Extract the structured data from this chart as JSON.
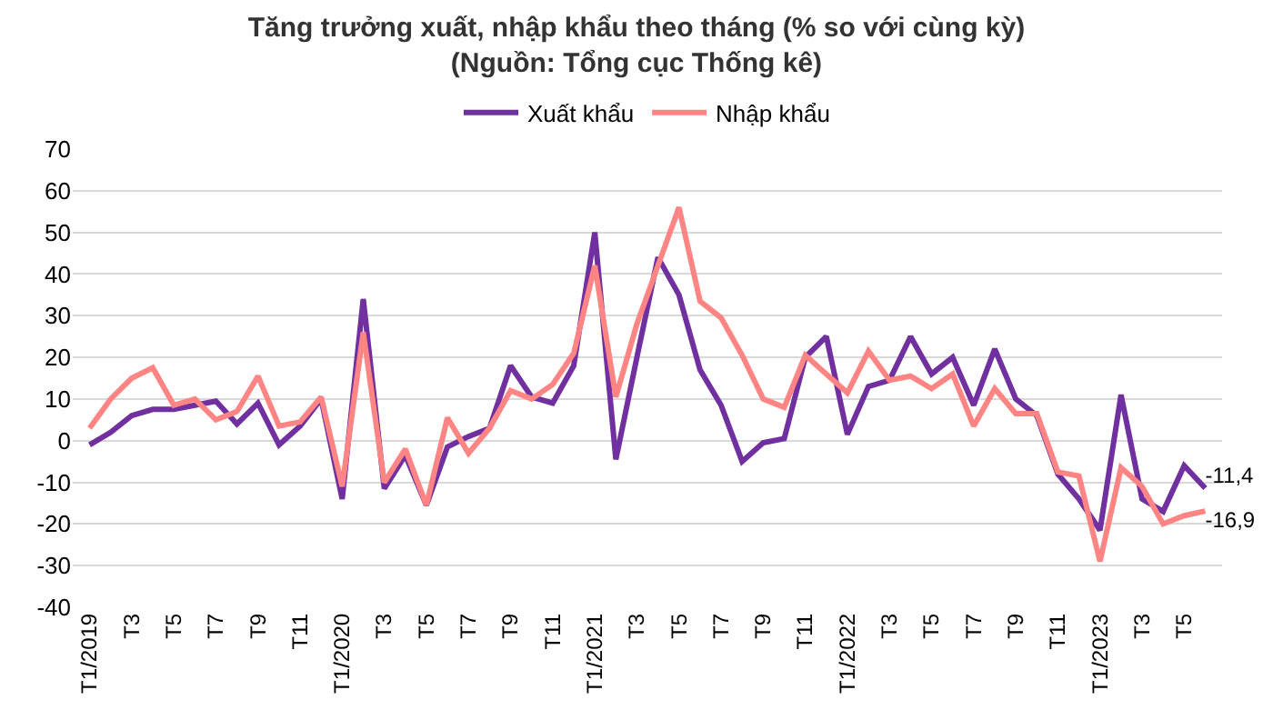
{
  "chart_data": {
    "type": "line",
    "title": "Tăng trưởng xuất, nhập khẩu theo tháng (% so với cùng kỳ)",
    "subtitle": "(Nguồn: Tổng cục Thống kê)",
    "categories": [
      "T1/2019",
      null,
      "T3",
      null,
      "T5",
      null,
      "T7",
      null,
      "T9",
      null,
      "T11",
      null,
      "T1/2020",
      null,
      "T3",
      null,
      "T5",
      null,
      "T7",
      null,
      "T9",
      null,
      "T11",
      null,
      "T1/2021",
      null,
      "T3",
      null,
      "T5",
      null,
      "T7",
      null,
      "T9",
      null,
      "T11",
      null,
      "T1/2022",
      null,
      "T3",
      null,
      "T5",
      null,
      "T7",
      null,
      "T9",
      null,
      "T11",
      null,
      "T1/2023",
      null,
      "T3",
      null,
      "T5",
      null
    ],
    "series": [
      {
        "name": "Xuất khẩu",
        "color": "#7030a0",
        "values": [
          -1,
          2,
          6,
          7.5,
          7.5,
          8.5,
          9.5,
          4,
          9,
          -1,
          3.5,
          10,
          -14,
          34,
          -11.5,
          -3.5,
          -15.5,
          -1.5,
          1,
          3,
          18,
          10.5,
          9,
          18,
          50,
          -4.5,
          20,
          44,
          35,
          17,
          8.5,
          -5,
          -0.5,
          0.5,
          20,
          25,
          1.5,
          13,
          14.5,
          25,
          16,
          20,
          8.5,
          22,
          10,
          6,
          -8,
          -14,
          -21.5,
          11,
          -14,
          -17,
          -6,
          -11.4
        ],
        "value_labels": [
          null,
          null,
          null,
          null,
          null,
          null,
          null,
          null,
          null,
          null,
          null,
          null,
          null,
          null,
          null,
          null,
          null,
          null,
          null,
          null,
          null,
          null,
          null,
          null,
          null,
          null,
          null,
          null,
          null,
          null,
          null,
          null,
          null,
          null,
          null,
          null,
          null,
          null,
          null,
          null,
          null,
          null,
          null,
          null,
          null,
          null,
          null,
          null,
          null,
          null,
          null,
          null,
          null,
          "-11,4"
        ]
      },
      {
        "name": "Nhập khẩu",
        "color": "#ff8585",
        "values": [
          3,
          10,
          15,
          17.5,
          8.5,
          10,
          5,
          7,
          15.5,
          3.5,
          4.5,
          10.5,
          -11,
          26,
          -10,
          -2,
          -15.5,
          5.5,
          -3,
          3,
          12,
          10,
          13.5,
          21,
          42,
          10.5,
          28,
          42,
          56,
          33.5,
          29.5,
          20.5,
          10,
          8,
          20.5,
          16,
          11.5,
          21.5,
          14.5,
          15.5,
          12.5,
          16,
          3.5,
          12.5,
          6.5,
          6.5,
          -7.5,
          -8.5,
          -29,
          -6.5,
          -11,
          -20,
          -18,
          -16.9
        ],
        "value_labels": [
          null,
          null,
          null,
          null,
          null,
          null,
          null,
          null,
          null,
          null,
          null,
          null,
          null,
          null,
          null,
          null,
          null,
          null,
          null,
          null,
          null,
          null,
          null,
          null,
          null,
          null,
          null,
          null,
          null,
          null,
          null,
          null,
          null,
          null,
          null,
          null,
          null,
          null,
          null,
          null,
          null,
          null,
          null,
          null,
          null,
          null,
          null,
          null,
          null,
          null,
          null,
          null,
          null,
          "-16,9"
        ]
      }
    ],
    "ylim": [
      -40,
      70
    ],
    "yticks": [
      -40,
      -30,
      -20,
      -10,
      0,
      10,
      20,
      30,
      40,
      50,
      60,
      70
    ],
    "grid": "y",
    "legend": "top",
    "marker": "none",
    "line_style": "solid"
  }
}
